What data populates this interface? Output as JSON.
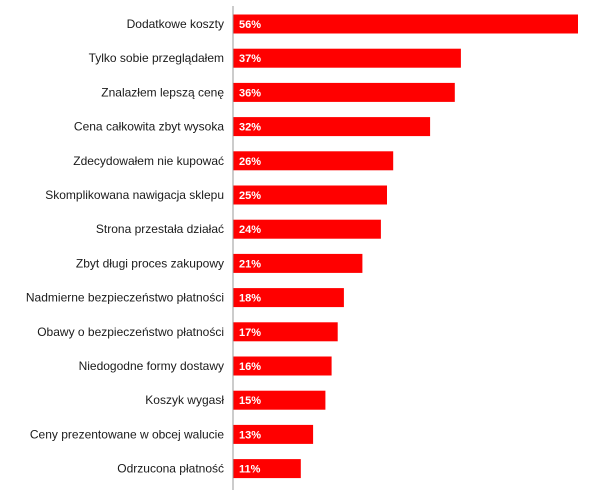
{
  "colors": {
    "bar": "#ff0000",
    "axis": "#999999",
    "background": "#ffffff"
  },
  "chart_data": {
    "type": "bar",
    "orientation": "horizontal",
    "title": "",
    "xlabel": "",
    "ylabel": "",
    "xlim": [
      0,
      56
    ],
    "grid": false,
    "legend": "none",
    "categories": [
      "Dodatkowe koszty",
      "Tylko sobie przeglądałem",
      "Znalazłem lepszą cenę",
      "Cena całkowita zbyt wysoka",
      "Zdecydowałem nie kupować",
      "Skomplikowana nawigacja sklepu",
      "Strona przestała działać",
      "Zbyt długi proces zakupowy",
      "Nadmierne bezpieczeństwo płatności",
      "Obawy o bezpieczeństwo płatności",
      "Niedogodne formy dostawy",
      "Koszyk wygasł",
      "Ceny prezentowane w obcej walucie",
      "Odrzucona płatność"
    ],
    "values": [
      56,
      37,
      36,
      32,
      26,
      25,
      24,
      21,
      18,
      17,
      16,
      15,
      13,
      11
    ],
    "value_labels": [
      "56%",
      "37%",
      "36%",
      "32%",
      "26%",
      "25%",
      "24%",
      "21%",
      "18%",
      "17%",
      "16%",
      "15%",
      "13%",
      "11%"
    ]
  }
}
